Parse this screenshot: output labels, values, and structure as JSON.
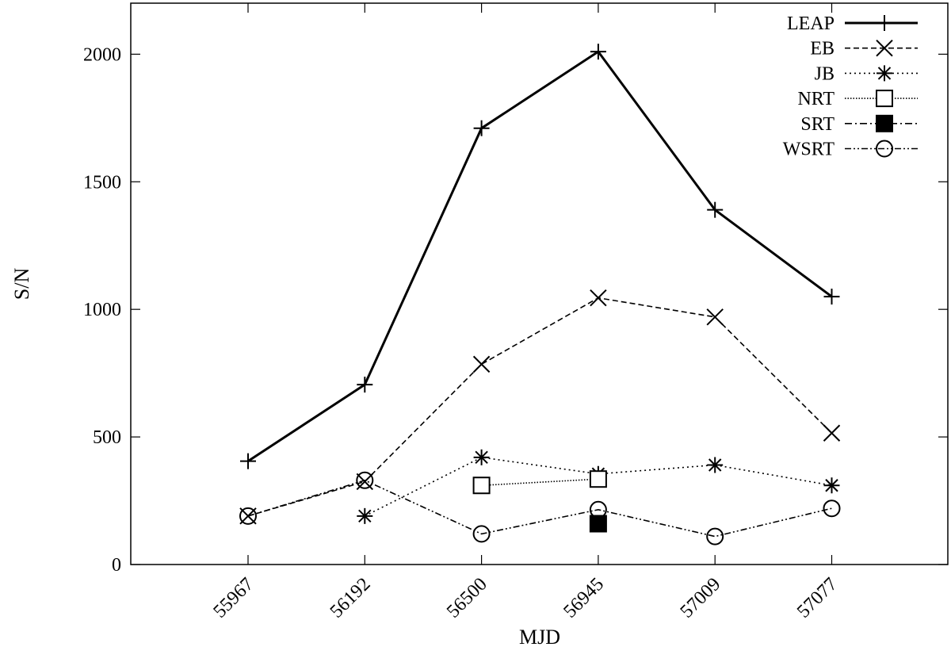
{
  "chart_data": {
    "type": "line",
    "title": "",
    "xlabel": "MJD",
    "ylabel": "S/N",
    "ylim": [
      0,
      2200
    ],
    "yticks": [
      0,
      500,
      1000,
      1500,
      2000
    ],
    "categories": [
      "55967",
      "56192",
      "56500",
      "56945",
      "57009",
      "57077"
    ],
    "grid": false,
    "legend_position": "top-right",
    "series": [
      {
        "name": "LEAP",
        "marker": "plus",
        "dash": "solid",
        "values": [
          405,
          705,
          1710,
          2010,
          1390,
          1050
        ]
      },
      {
        "name": "EB",
        "marker": "cross",
        "dash": "dashed",
        "values": [
          190,
          325,
          785,
          1045,
          970,
          515
        ]
      },
      {
        "name": "JB",
        "marker": "asterisk",
        "dash": "dotted",
        "values": [
          null,
          190,
          420,
          355,
          390,
          310
        ]
      },
      {
        "name": "NRT",
        "marker": "open-square",
        "dash": "fine-dotted",
        "values": [
          null,
          null,
          310,
          335,
          null,
          null
        ]
      },
      {
        "name": "SRT",
        "marker": "filled-square",
        "dash": "dash-dot",
        "values": [
          null,
          null,
          null,
          160,
          null,
          null
        ]
      },
      {
        "name": "WSRT",
        "marker": "open-circle",
        "dash": "dash-dot-dot",
        "values": [
          190,
          330,
          120,
          215,
          110,
          220
        ]
      }
    ]
  }
}
